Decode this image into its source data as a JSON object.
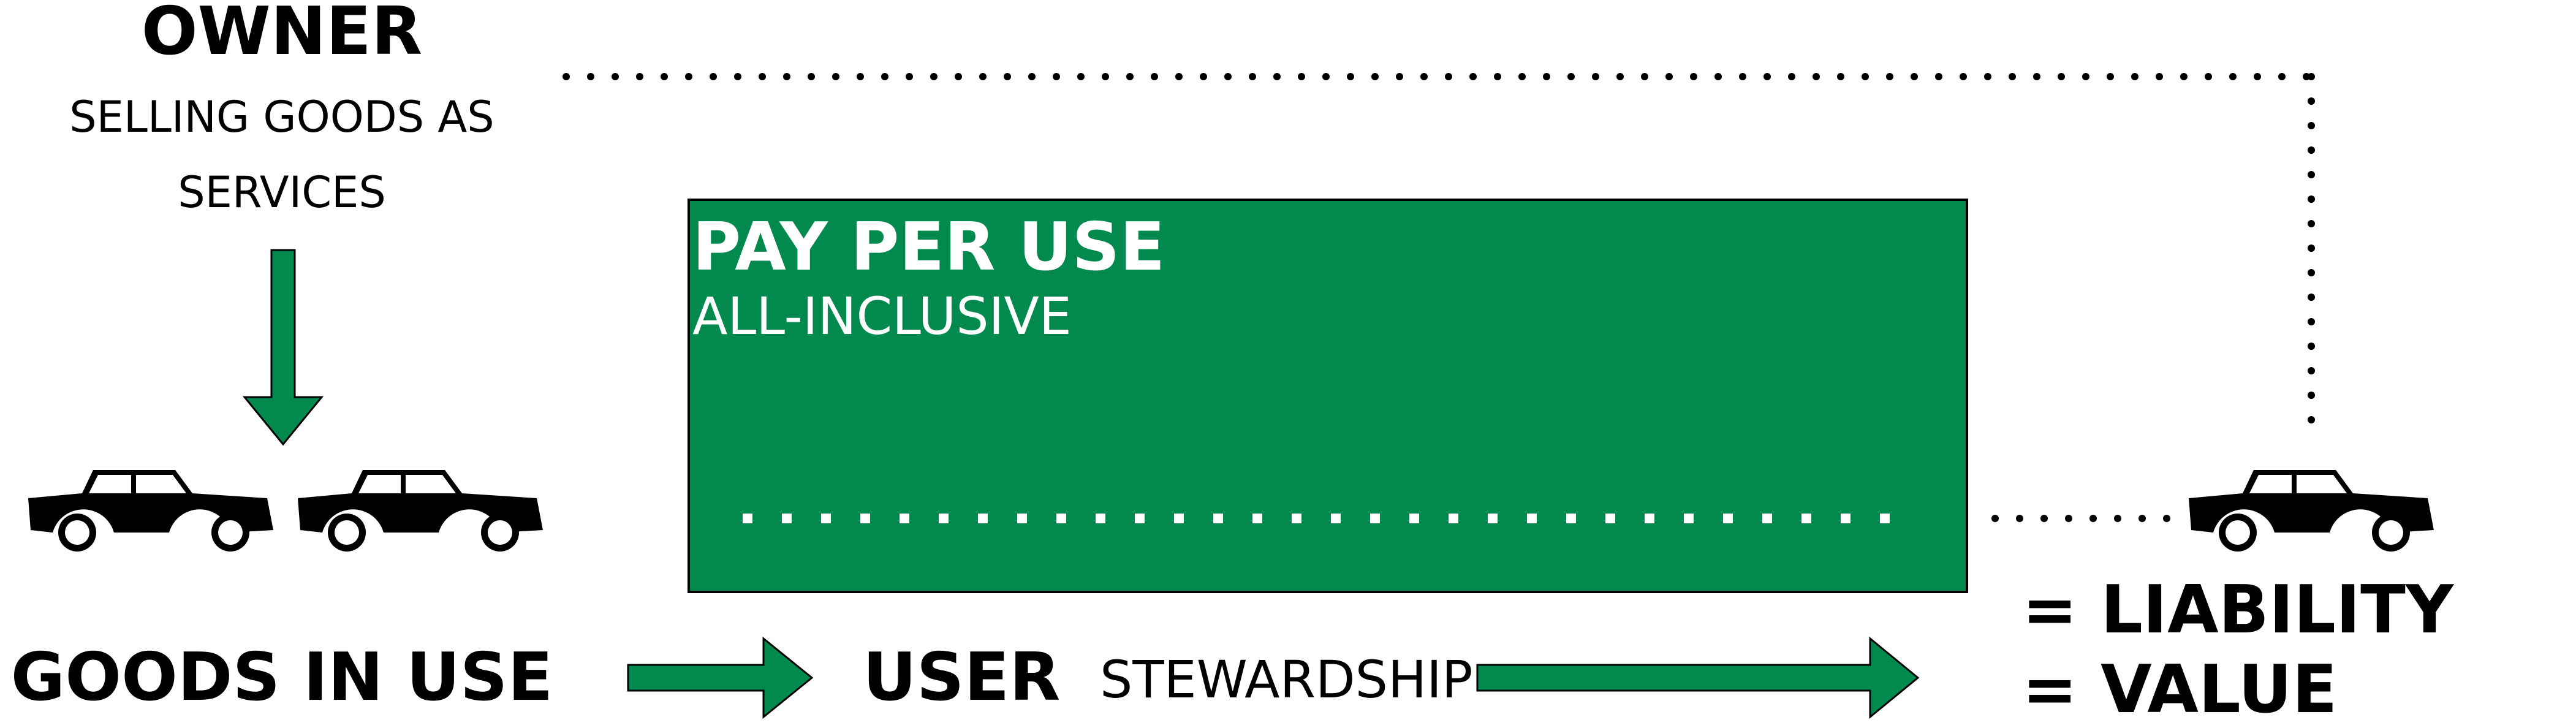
{
  "colors": {
    "accent_green": "#028A4E",
    "ink": "#000000",
    "paper": "#ffffff"
  },
  "owner": {
    "title": "OWNER",
    "subtitle_line1": "SELLING GOODS AS",
    "subtitle_line2": "SERVICES"
  },
  "box": {
    "title": "PAY PER USE",
    "subtitle": "ALL-INCLUSIVE"
  },
  "bottom": {
    "goods_in_use": "GOODS IN USE",
    "user": "USER",
    "stewardship": "STEWARDSHIP"
  },
  "result": {
    "line1": "= LIABILITY",
    "line2": "= VALUE"
  },
  "icons": {
    "car": "car-icon",
    "arrow_down": "arrow-down-icon",
    "arrow_right": "arrow-right-icon"
  }
}
